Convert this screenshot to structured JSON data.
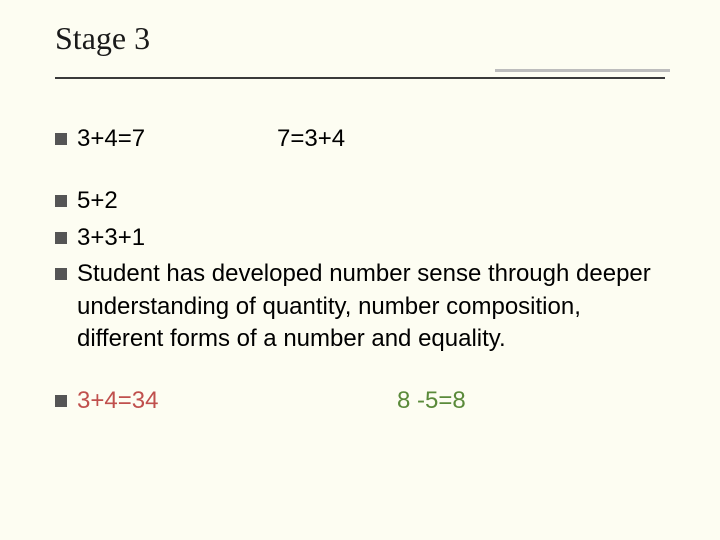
{
  "colors": {
    "background": "#fdfdf2",
    "text": "#000000",
    "title": "#1a1a1a",
    "bullet": "#555555",
    "rule_long": "#3a3a3a",
    "rule_short": "#bdbdbd",
    "red": "#c0504d",
    "green": "#5a8a3a"
  },
  "typography": {
    "title_font": "Times New Roman",
    "title_size_pt": 32,
    "body_font": "Arial",
    "body_size_pt": 24
  },
  "title": "Stage 3",
  "line1": {
    "left": "3+4=7",
    "right": "7=3+4"
  },
  "line2": "5+2",
  "line3": "3+3+1",
  "line4": "Student has developed number sense through deeper understanding of quantity, number composition, different forms of a number and equality.",
  "line5": {
    "left": "3+4=34",
    "right": "8 -5=8"
  }
}
